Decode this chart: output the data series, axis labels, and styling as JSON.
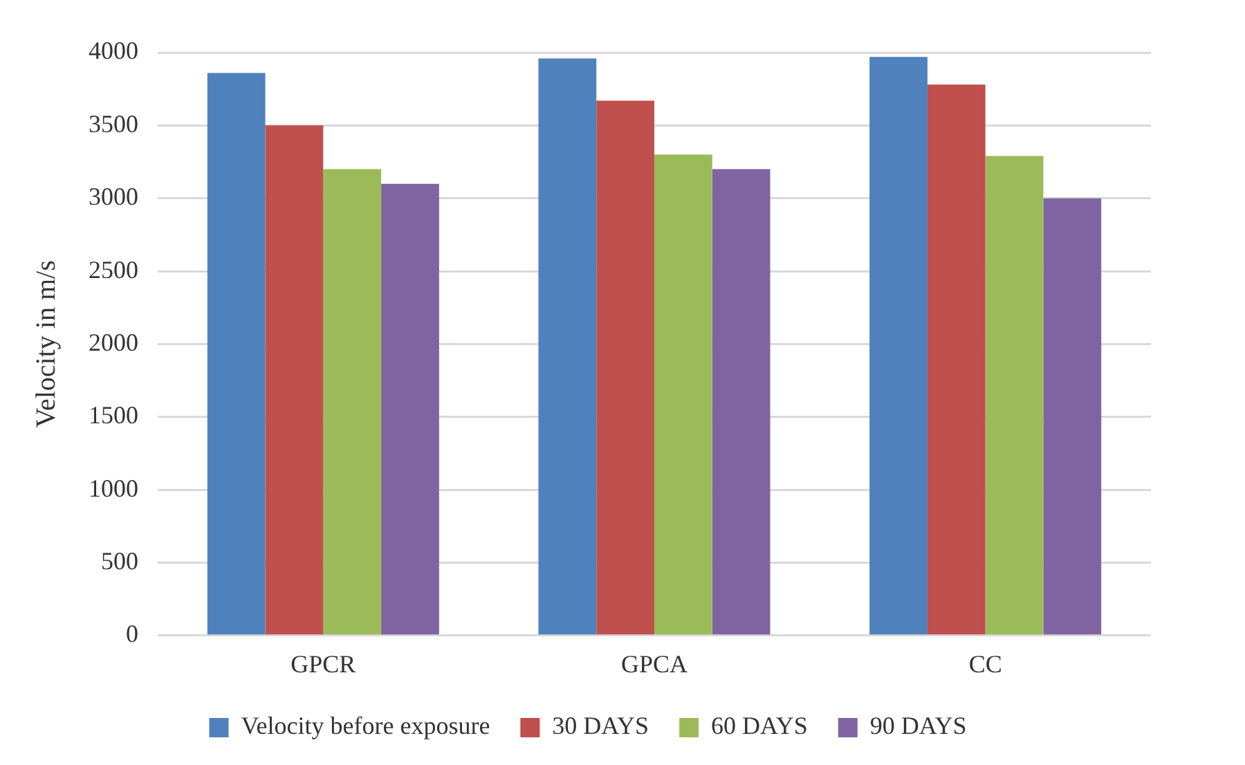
{
  "chart_data": {
    "type": "bar",
    "ylabel": "Velocity in m/s",
    "categories": [
      "GPCR",
      "GPCA",
      "CC"
    ],
    "series": [
      {
        "name": "Velocity before exposure",
        "color": "#4f81bd",
        "values": [
          3860,
          3960,
          3970
        ]
      },
      {
        "name": "30 DAYS",
        "color": "#c0504d",
        "values": [
          3500,
          3670,
          3780
        ]
      },
      {
        "name": "60 DAYS",
        "color": "#9bbb59",
        "values": [
          3200,
          3300,
          3290
        ]
      },
      {
        "name": "90 DAYS",
        "color": "#8064a2",
        "values": [
          3100,
          3200,
          3000
        ]
      }
    ],
    "ylim": [
      0,
      4000
    ],
    "yticks": [
      0,
      500,
      1000,
      1500,
      2000,
      2500,
      3000,
      3500,
      4000
    ],
    "grid": "y",
    "legend": "bottom"
  }
}
